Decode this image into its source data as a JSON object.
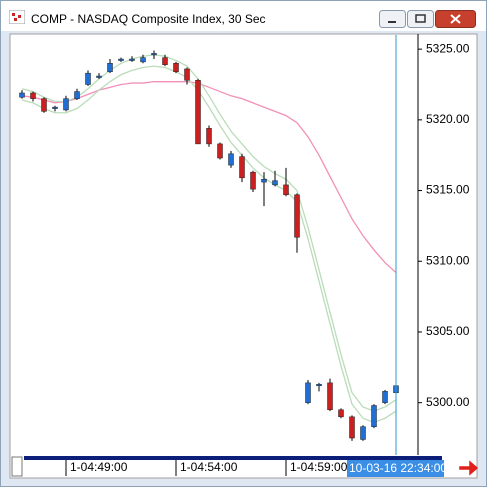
{
  "window": {
    "title": "COMP - NASDAQ Composite Index, 30 Sec"
  },
  "chart_data": {
    "type": "candlestick",
    "categories": [
      null,
      null,
      null,
      null,
      "1-04:49:00",
      null,
      null,
      null,
      null,
      null,
      null,
      null,
      null,
      null,
      "1-04:54:00",
      null,
      null,
      null,
      null,
      null,
      null,
      null,
      null,
      null,
      "1-04:59:00",
      null,
      null,
      null,
      null,
      null,
      null,
      null,
      null,
      null,
      null
    ],
    "crosshair_label": "10-03-16 22:34:00",
    "open": [
      5321.6,
      5321.9,
      5321.5,
      5320.8,
      5320.7,
      5321.5,
      5322.5,
      5323.0,
      5323.4,
      5324.2,
      5324.2,
      5324.1,
      5324.7,
      5324.4,
      5324.0,
      5323.6,
      5322.8,
      5319.4,
      5318.3,
      5316.8,
      5317.4,
      5316.3,
      5315.6,
      5315.4,
      5315.4,
      5314.7,
      5300.0,
      5301.2,
      5301.4,
      5299.5,
      5299.0,
      5297.4,
      5298.3,
      5300.0,
      5300.7
    ],
    "high": [
      5322.1,
      5322.0,
      5321.6,
      5321.0,
      5321.7,
      5322.2,
      5323.5,
      5323.3,
      5324.3,
      5324.4,
      5324.5,
      5324.6,
      5324.9,
      5324.6,
      5324.1,
      5323.7,
      5322.9,
      5319.6,
      5318.4,
      5317.8,
      5317.6,
      5316.4,
      5316.3,
      5316.4,
      5316.6,
      5314.8,
      5301.6,
      5301.4,
      5301.7,
      5299.6,
      5299.1,
      5298.4,
      5299.9,
      5300.9,
      5301.5
    ],
    "low": [
      5321.5,
      5321.3,
      5320.5,
      5320.6,
      5320.6,
      5321.4,
      5322.4,
      5322.9,
      5323.3,
      5324.1,
      5324.1,
      5324.0,
      5324.3,
      5323.8,
      5323.3,
      5322.5,
      5318.3,
      5318.1,
      5317.2,
      5316.6,
      5315.6,
      5314.9,
      5313.9,
      5315.3,
      5314.6,
      5310.6,
      5299.9,
      5300.8,
      5299.4,
      5298.9,
      5297.3,
      5297.3,
      5298.2,
      5299.9,
      5300.6
    ],
    "close": [
      5321.9,
      5321.5,
      5320.6,
      5320.9,
      5321.5,
      5322.0,
      5323.3,
      5323.1,
      5324.0,
      5324.3,
      5324.3,
      5324.4,
      5324.7,
      5323.9,
      5323.4,
      5322.8,
      5318.3,
      5318.3,
      5317.3,
      5317.6,
      5315.9,
      5315.1,
      5315.8,
      5315.7,
      5314.7,
      5311.7,
      5301.4,
      5301.3,
      5299.5,
      5299.0,
      5297.5,
      5298.3,
      5299.8,
      5300.8,
      5301.2
    ],
    "up_color": "#1f6fd6",
    "down_color": "#cc1f1f",
    "lines": [
      {
        "color": "#f28fb8",
        "values": [
          5321.7,
          5321.6,
          5321.4,
          5321.2,
          5321.3,
          5321.5,
          5321.8,
          5322.1,
          5322.3,
          5322.5,
          5322.6,
          5322.6,
          5322.7,
          5322.7,
          5322.7,
          5322.7,
          5322.6,
          5322.3,
          5322.0,
          5321.7,
          5321.5,
          5321.2,
          5320.9,
          5320.6,
          5320.3,
          5319.8,
          5318.8,
          5317.5,
          5316.0,
          5314.5,
          5313.0,
          5311.8,
          5310.8,
          5309.9,
          5309.2
        ]
      },
      {
        "color": "#b9dcb9",
        "values": [
          5322.2,
          5322.0,
          5321.6,
          5321.3,
          5321.3,
          5321.6,
          5322.2,
          5322.9,
          5323.5,
          5324.0,
          5324.3,
          5324.5,
          5324.6,
          5324.5,
          5324.2,
          5323.8,
          5322.9,
          5321.7,
          5320.4,
          5319.2,
          5318.3,
          5317.4,
          5316.7,
          5316.2,
          5315.8,
          5315.0,
          5312.4,
          5309.4,
          5306.4,
          5303.4,
          5300.7,
          5299.7,
          5299.4,
          5299.7,
          5300.2
        ]
      },
      {
        "color": "#b9dcb9",
        "values": [
          5321.4,
          5321.2,
          5320.8,
          5320.5,
          5320.5,
          5320.8,
          5321.4,
          5322.1,
          5322.7,
          5323.2,
          5323.5,
          5323.7,
          5323.8,
          5323.7,
          5323.4,
          5323.0,
          5322.1,
          5320.9,
          5319.6,
          5318.4,
          5317.5,
          5316.6,
          5315.9,
          5315.4,
          5315.0,
          5314.2,
          5311.6,
          5308.6,
          5305.6,
          5302.6,
          5299.9,
          5298.9,
          5298.6,
          5298.9,
          5299.4
        ]
      }
    ],
    "crosshair_color": "#2a9ad0",
    "ylim": [
      5296.3,
      5326.0
    ],
    "yticks": [
      {
        "value": 5300,
        "label": "5300.00"
      },
      {
        "value": 5305,
        "label": "5305.00"
      },
      {
        "value": 5310,
        "label": "5310.00"
      },
      {
        "value": 5315,
        "label": "5315.00"
      },
      {
        "value": 5320,
        "label": "5320.00"
      },
      {
        "value": 5325,
        "label": "5325.00"
      }
    ]
  }
}
